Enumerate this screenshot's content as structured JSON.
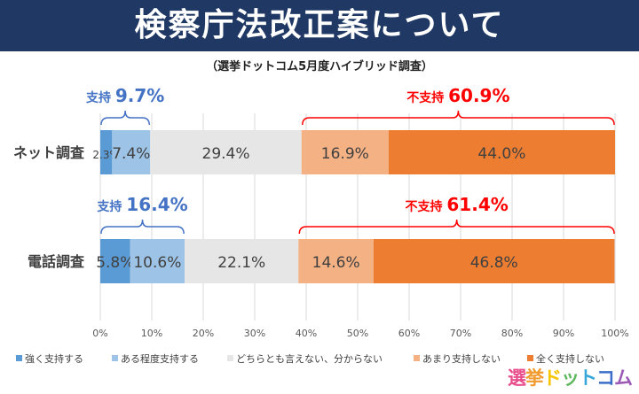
{
  "header": {
    "title": "検察庁法改正案について",
    "subtitle": "（選挙ドットコム5月度ハイブリッド調査）"
  },
  "chart_data": {
    "type": "bar",
    "orientation": "horizontal-stacked-100",
    "categories": [
      "ネット調査",
      "電話調査"
    ],
    "series": [
      {
        "name": "強く支持する",
        "color": "#5b9bd5",
        "values": [
          2.3,
          5.8
        ]
      },
      {
        "name": "ある程度支持する",
        "color": "#9dc3e6",
        "values": [
          7.4,
          10.6
        ]
      },
      {
        "name": "どちらとも言えない、分からない",
        "color": "#e7e6e6",
        "values": [
          29.4,
          22.1
        ]
      },
      {
        "name": "あまり支持しない",
        "color": "#f4b183",
        "values": [
          16.9,
          14.6
        ]
      },
      {
        "name": "全く支持しない",
        "color": "#ed7d31",
        "values": [
          44.0,
          46.8
        ]
      }
    ],
    "xlim": [
      0,
      100
    ],
    "x_ticks": [
      "0%",
      "10%",
      "20%",
      "30%",
      "40%",
      "50%",
      "60%",
      "70%",
      "80%",
      "90%",
      "100%"
    ],
    "grid": true,
    "legend": "bottom",
    "annotations": [
      {
        "row": 0,
        "group": "support",
        "label": "支持",
        "value": "9.7%",
        "color": "#4472c4"
      },
      {
        "row": 0,
        "group": "oppose",
        "label": "不支持",
        "value": "60.9%",
        "color": "#ff0000"
      },
      {
        "row": 1,
        "group": "support",
        "label": "支持",
        "value": "16.4%",
        "color": "#4472c4"
      },
      {
        "row": 1,
        "group": "oppose",
        "label": "不支持",
        "value": "61.4%",
        "color": "#ff0000"
      }
    ]
  },
  "logo": {
    "text": "選挙ドットコム"
  }
}
